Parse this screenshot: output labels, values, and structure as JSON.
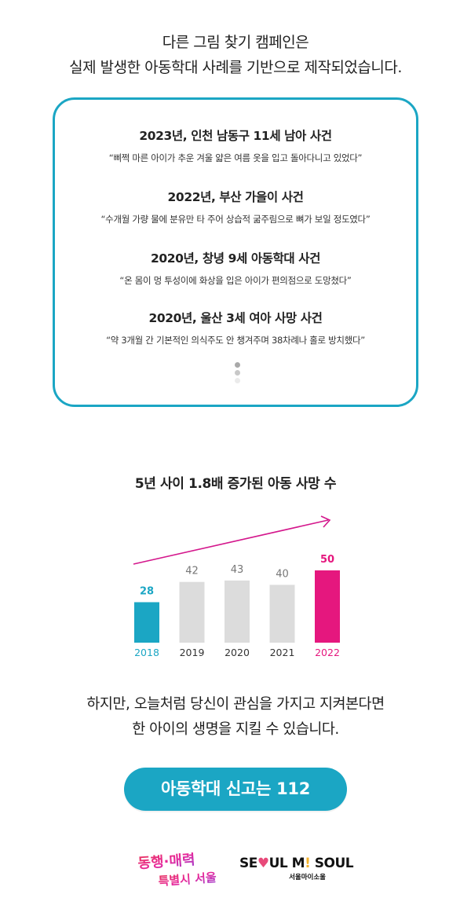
{
  "intro": {
    "line1": "다른 그림 찾기 캠페인은",
    "line2": "실제 발생한 아동학대 사례를 기반으로 제작되었습니다."
  },
  "cases": [
    {
      "title": "2023년, 인천 남동구 11세 남아 사건",
      "quote": "“삐쩍 마른 아이가 추운 겨울 얇은 여름 옷을 입고 돌아다니고 있었다”"
    },
    {
      "title": "2022년, 부산 가을이 사건",
      "quote": "“수개월 가량 물에 분유만 타 주어 상습적 굶주림으로 뼈가 보일 정도였다”"
    },
    {
      "title": "2020년, 창녕 9세 아동학대 사건",
      "quote": "“온 몸이 멍 투성이에 화상을 입은 아이가 편의점으로 도망쳤다”"
    },
    {
      "title": "2020년, 울산 3세 여아 사망 사건",
      "quote": "“약 3개월 간 기본적인 의식주도 안 챙겨주며 38차례나 홀로 방치했다”"
    }
  ],
  "chart_title": "5년 사이 1.8배 증가된 아동 사망 수",
  "chart_data": {
    "type": "bar",
    "title": "5년 사이 1.8배 증가된 아동 사망 수",
    "categories": [
      "2018",
      "2019",
      "2020",
      "2021",
      "2022"
    ],
    "values": [
      28,
      42,
      43,
      40,
      50
    ],
    "colors": [
      "#1ba6c4",
      "#dcdcdc",
      "#dcdcdc",
      "#dcdcdc",
      "#e5177e"
    ],
    "label_colors": [
      "#1ba6c4",
      "#777777",
      "#777777",
      "#777777",
      "#e5177e"
    ],
    "tick_colors": [
      "#1ba6c4",
      "#333333",
      "#333333",
      "#333333",
      "#e5177e"
    ],
    "trend_arrow_color": "#d4178c",
    "ylim": [
      0,
      50
    ],
    "grid": false,
    "xlabel": "",
    "ylabel": ""
  },
  "closing": {
    "line1": "하지만, 오늘처럼 당신이 관심을 가지고 지켜본다면",
    "line2": "한 아이의 생명을 지킬 수 있습니다."
  },
  "report_button": {
    "label": "아동학대 신고는 112",
    "color": "#1ba6c4"
  },
  "logos": {
    "haechi": {
      "line1": "동행·매력",
      "line2": "특별시 서울"
    },
    "seoul": {
      "main": "SEOUL MY SOUL",
      "sub": "서울마이소울"
    }
  }
}
